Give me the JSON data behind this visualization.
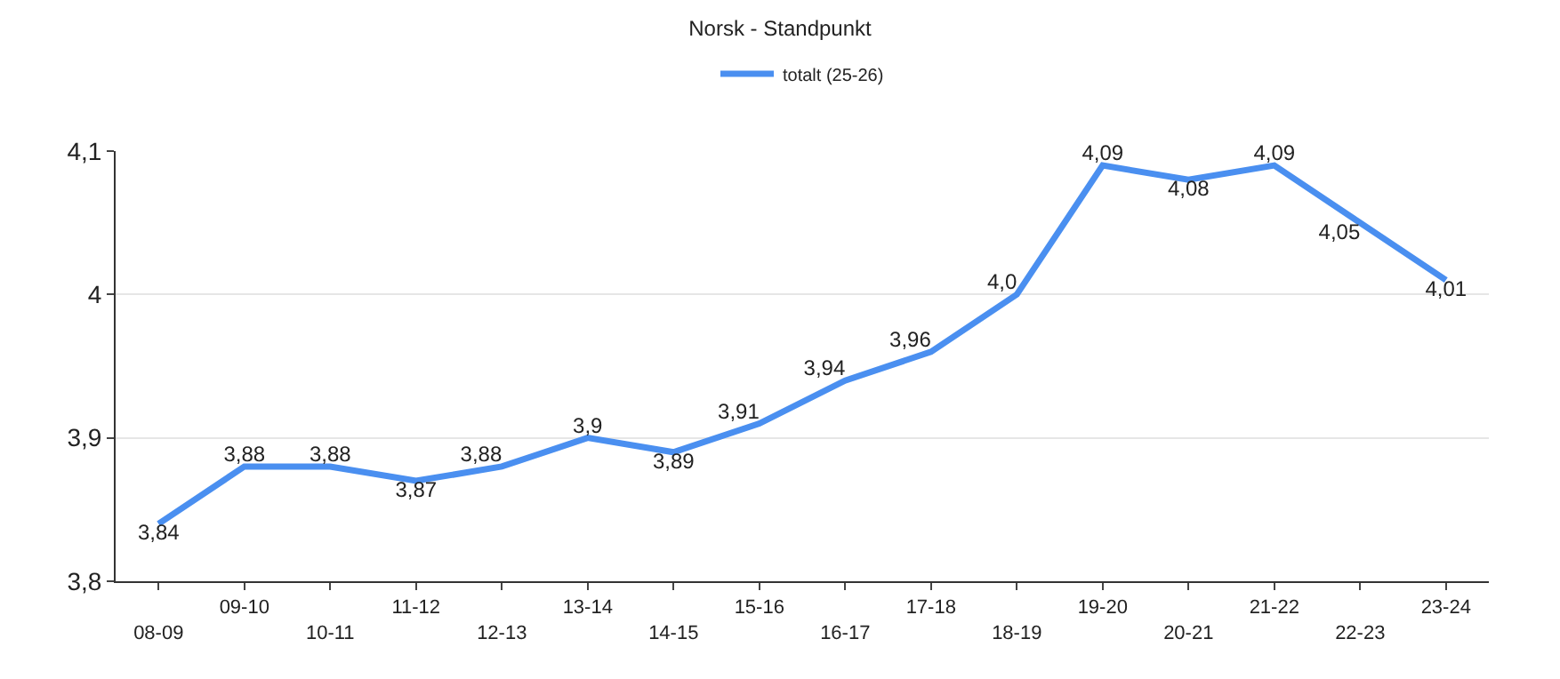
{
  "chart_data": {
    "type": "line",
    "title": "Norsk - Standpunkt",
    "categories": [
      "08-09",
      "09-10",
      "10-11",
      "11-12",
      "12-13",
      "13-14",
      "14-15",
      "15-16",
      "16-17",
      "17-18",
      "18-19",
      "19-20",
      "20-21",
      "21-22",
      "22-23",
      "23-24"
    ],
    "series": [
      {
        "name": "totalt (25-26)",
        "color": "#4a8ff0",
        "values": [
          3.84,
          3.88,
          3.88,
          3.87,
          3.88,
          3.9,
          3.89,
          3.91,
          3.94,
          3.96,
          4.0,
          4.09,
          4.08,
          4.09,
          4.05,
          4.01
        ],
        "value_labels": [
          "3,84",
          "3,88",
          "3,88",
          "3,87",
          "3,88",
          "3,9",
          "3,89",
          "3,91",
          "3,94",
          "3,96",
          "4,0",
          "4,09",
          "4,08",
          "4,09",
          "4,05",
          "4,01"
        ]
      }
    ],
    "ylim": [
      3.8,
      4.1
    ],
    "yticks": [
      {
        "value": 3.8,
        "label": "3,8"
      },
      {
        "value": 3.9,
        "label": "3,9"
      },
      {
        "value": 4,
        "label": "4"
      },
      {
        "value": 4.1,
        "label": "4,1"
      }
    ],
    "grid": "y",
    "legend": "top",
    "marker": "none",
    "line_style": "solid"
  }
}
